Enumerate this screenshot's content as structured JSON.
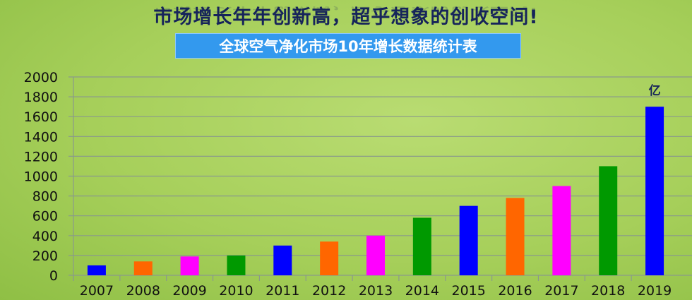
{
  "header": {
    "title": "市场增长年年创新高，超乎想象的创收空间!",
    "subtitle": "全球空气净化市场10年增长数据统计表"
  },
  "chart_data": {
    "type": "bar",
    "title": "全球空气净化市场10年增长数据统计表",
    "unit_label": "亿",
    "categories": [
      "2007",
      "2008",
      "2009",
      "2010",
      "2011",
      "2012",
      "2013",
      "2014",
      "2015",
      "2016",
      "2017",
      "2018",
      "2019"
    ],
    "values": [
      100,
      140,
      190,
      200,
      300,
      340,
      400,
      580,
      700,
      780,
      900,
      1100,
      1700
    ],
    "colors": [
      "#0000ff",
      "#ff6600",
      "#ff00ff",
      "#009900",
      "#0000ff",
      "#ff6600",
      "#ff00ff",
      "#009900",
      "#0000ff",
      "#ff6600",
      "#ff00ff",
      "#009900",
      "#0000ff"
    ],
    "ylim": [
      0,
      2000
    ],
    "yticks": [
      0,
      200,
      400,
      600,
      800,
      1000,
      1200,
      1400,
      1600,
      1800,
      2000
    ],
    "grid": true
  }
}
